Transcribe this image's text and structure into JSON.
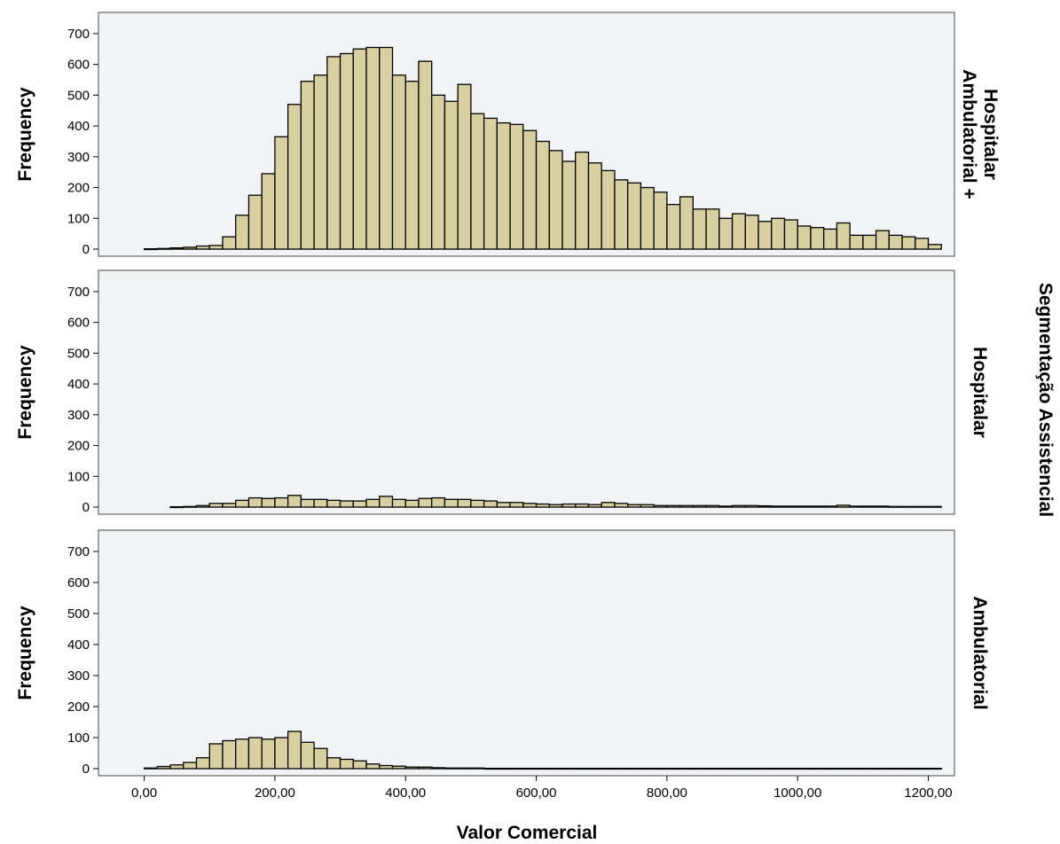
{
  "chart_data": {
    "type": "bar",
    "subtype": "paneled-histogram",
    "xlabel": "Valor Comercial",
    "ylabel": "Frequency",
    "panel_variable": "Segmentação Assistencial",
    "xlim": [
      -70,
      1240
    ],
    "ylim": [
      0,
      740
    ],
    "x_ticks": [
      0,
      200,
      400,
      600,
      800,
      1000,
      1200
    ],
    "x_tick_labels": [
      "0,00",
      "200,00",
      "400,00",
      "600,00",
      "800,00",
      "1000,00",
      "1200,00"
    ],
    "y_ticks": [
      0,
      100,
      200,
      300,
      400,
      500,
      600,
      700
    ],
    "y_tick_labels": [
      "0",
      "100",
      "200",
      "300",
      "400",
      "500",
      "600",
      "700"
    ],
    "bin_start": 0,
    "bin_width": 20,
    "grid": false,
    "panels": [
      {
        "label_lines": [
          "Ambulatorial +",
          "Hospitalar"
        ],
        "values": [
          1,
          2,
          4,
          6,
          10,
          12,
          40,
          110,
          175,
          245,
          365,
          470,
          545,
          565,
          625,
          635,
          650,
          655,
          655,
          565,
          545,
          610,
          500,
          480,
          535,
          440,
          425,
          410,
          405,
          385,
          350,
          320,
          285,
          315,
          280,
          255,
          225,
          215,
          200,
          185,
          145,
          170,
          130,
          130,
          100,
          115,
          110,
          90,
          100,
          95,
          75,
          70,
          65,
          85,
          45,
          45,
          60,
          45,
          40,
          35,
          15
        ]
      },
      {
        "label_lines": [
          "Hospitalar"
        ],
        "values": [
          0,
          0,
          1,
          2,
          5,
          12,
          12,
          22,
          30,
          28,
          30,
          38,
          25,
          25,
          22,
          20,
          20,
          25,
          35,
          25,
          22,
          28,
          30,
          25,
          25,
          22,
          20,
          15,
          15,
          12,
          10,
          8,
          10,
          10,
          8,
          15,
          12,
          8,
          8,
          5,
          5,
          5,
          5,
          5,
          3,
          5,
          5,
          4,
          3,
          3,
          3,
          3,
          3,
          6,
          3,
          3,
          3,
          2,
          2,
          2,
          2
        ]
      },
      {
        "label_lines": [
          "Ambulatorial"
        ],
        "values": [
          2,
          7,
          12,
          20,
          35,
          80,
          90,
          95,
          100,
          95,
          100,
          120,
          85,
          65,
          35,
          30,
          25,
          15,
          10,
          8,
          5,
          5,
          3,
          2,
          2,
          2,
          1,
          1,
          1,
          1,
          1,
          1,
          1,
          1,
          1,
          1,
          1,
          1,
          1,
          1,
          1,
          1,
          1,
          1,
          1,
          1,
          1,
          1,
          1,
          1,
          1,
          1,
          1,
          1,
          1,
          1,
          1,
          1,
          1,
          1,
          1
        ]
      }
    ],
    "colors": {
      "bar_fill": "#d8d0a0",
      "bar_stroke": "#000000",
      "panel_bg": "#f1f3f4"
    }
  }
}
